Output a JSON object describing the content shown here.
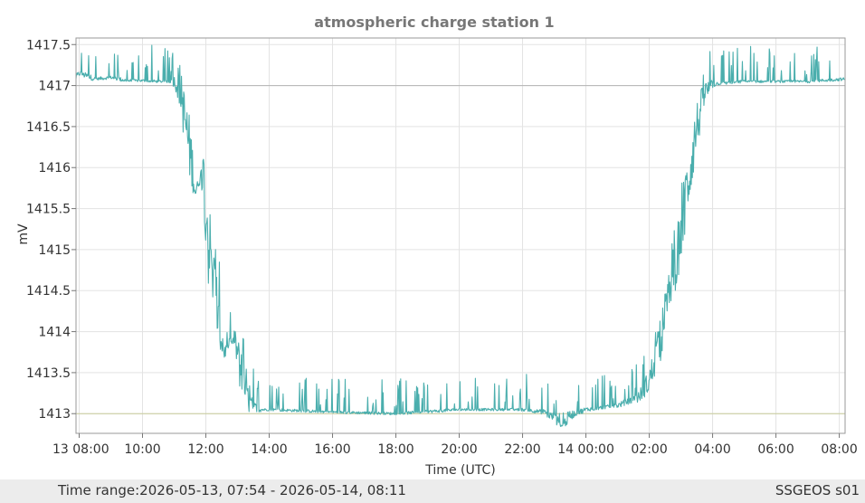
{
  "chart_data": {
    "type": "line",
    "title": "atmospheric charge station 1",
    "xlabel": "Time (UTC)",
    "ylabel": "mV",
    "ylim": [
      1412.76,
      1417.58
    ],
    "x_range": [
      "2026-05-13 07:54",
      "2026-05-14 08:11"
    ],
    "x_ticks": [
      {
        "t": "2026-05-13 08:00",
        "label": "13 08:00"
      },
      {
        "t": "2026-05-13 10:00",
        "label": "10:00"
      },
      {
        "t": "2026-05-13 12:00",
        "label": "12:00"
      },
      {
        "t": "2026-05-13 14:00",
        "label": "14:00"
      },
      {
        "t": "2026-05-13 16:00",
        "label": "16:00"
      },
      {
        "t": "2026-05-13 18:00",
        "label": "18:00"
      },
      {
        "t": "2026-05-13 20:00",
        "label": "20:00"
      },
      {
        "t": "2026-05-13 22:00",
        "label": "22:00"
      },
      {
        "t": "2026-05-14 00:00",
        "label": "14 00:00"
      },
      {
        "t": "2026-05-14 02:00",
        "label": "02:00"
      },
      {
        "t": "2026-05-14 04:00",
        "label": "04:00"
      },
      {
        "t": "2026-05-14 06:00",
        "label": "06:00"
      },
      {
        "t": "2026-05-14 08:00",
        "label": "08:00"
      }
    ],
    "y_ticks": [
      {
        "v": 1413,
        "label": "1413"
      },
      {
        "v": 1413.5,
        "label": "1413.5"
      },
      {
        "v": 1414,
        "label": "1414"
      },
      {
        "v": 1414.5,
        "label": "1414.5"
      },
      {
        "v": 1415,
        "label": "1415"
      },
      {
        "v": 1415.5,
        "label": "1415.5"
      },
      {
        "v": 1416,
        "label": "1416"
      },
      {
        "v": 1416.5,
        "label": "1416.5"
      },
      {
        "v": 1417,
        "label": "1417"
      },
      {
        "v": 1417.5,
        "label": "1417.5"
      }
    ],
    "reference_lines": [
      {
        "y": 1417,
        "color": "#b4b4b4"
      },
      {
        "y": 1413,
        "color": "#c8cc9a"
      }
    ],
    "grid": true,
    "series": [
      {
        "color": "#4aaead",
        "points": [
          [
            "2026-05-13 07:54",
            1417.1
          ],
          [
            "2026-05-13 08:00",
            1417.15
          ],
          [
            "2026-05-13 08:30",
            1417.08
          ],
          [
            "2026-05-13 09:00",
            1417.1
          ],
          [
            "2026-05-13 09:30",
            1417.06
          ],
          [
            "2026-05-13 10:00",
            1417.06
          ],
          [
            "2026-05-13 10:30",
            1417.05
          ],
          [
            "2026-05-13 11:00",
            1417.05
          ],
          [
            "2026-05-13 11:05",
            1417.02
          ],
          [
            "2026-05-13 11:15",
            1416.8
          ],
          [
            "2026-05-13 11:25",
            1416.4
          ],
          [
            "2026-05-13 11:35",
            1416.0
          ],
          [
            "2026-05-13 11:40",
            1415.7
          ],
          [
            "2026-05-13 11:48",
            1415.85
          ],
          [
            "2026-05-13 11:55",
            1415.95
          ],
          [
            "2026-05-13 12:05",
            1415.1
          ],
          [
            "2026-05-13 12:15",
            1414.6
          ],
          [
            "2026-05-13 12:25",
            1414.1
          ],
          [
            "2026-05-13 12:35",
            1413.75
          ],
          [
            "2026-05-13 12:45",
            1413.85
          ],
          [
            "2026-05-13 12:55",
            1413.9
          ],
          [
            "2026-05-13 13:05",
            1413.55
          ],
          [
            "2026-05-13 13:20",
            1413.15
          ],
          [
            "2026-05-13 13:40",
            1413.05
          ],
          [
            "2026-05-13 14:00",
            1413.05
          ],
          [
            "2026-05-13 16:00",
            1413.02
          ],
          [
            "2026-05-13 18:00",
            1413.0
          ],
          [
            "2026-05-13 20:00",
            1413.05
          ],
          [
            "2026-05-13 22:00",
            1413.05
          ],
          [
            "2026-05-13 22:40",
            1413.02
          ],
          [
            "2026-05-13 23:00",
            1412.95
          ],
          [
            "2026-05-13 23:15",
            1412.85
          ],
          [
            "2026-05-13 23:30",
            1412.98
          ],
          [
            "2026-05-14 00:00",
            1413.05
          ],
          [
            "2026-05-14 01:00",
            1413.1
          ],
          [
            "2026-05-14 01:40",
            1413.2
          ],
          [
            "2026-05-14 02:00",
            1413.4
          ],
          [
            "2026-05-14 02:20",
            1413.85
          ],
          [
            "2026-05-14 02:40",
            1414.5
          ],
          [
            "2026-05-14 03:00",
            1415.2
          ],
          [
            "2026-05-14 03:15",
            1415.9
          ],
          [
            "2026-05-14 03:30",
            1416.5
          ],
          [
            "2026-05-14 03:45",
            1416.9
          ],
          [
            "2026-05-14 04:00",
            1417.02
          ],
          [
            "2026-05-14 05:00",
            1417.05
          ],
          [
            "2026-05-14 06:00",
            1417.05
          ],
          [
            "2026-05-14 07:00",
            1417.05
          ],
          [
            "2026-05-14 08:11",
            1417.08
          ]
        ]
      }
    ]
  },
  "footer": {
    "time_range_label": "Time range:",
    "time_range_value": "2026-05-13, 07:54 - 2026-05-14, 08:11",
    "station_label": "SSGEOS s01"
  }
}
